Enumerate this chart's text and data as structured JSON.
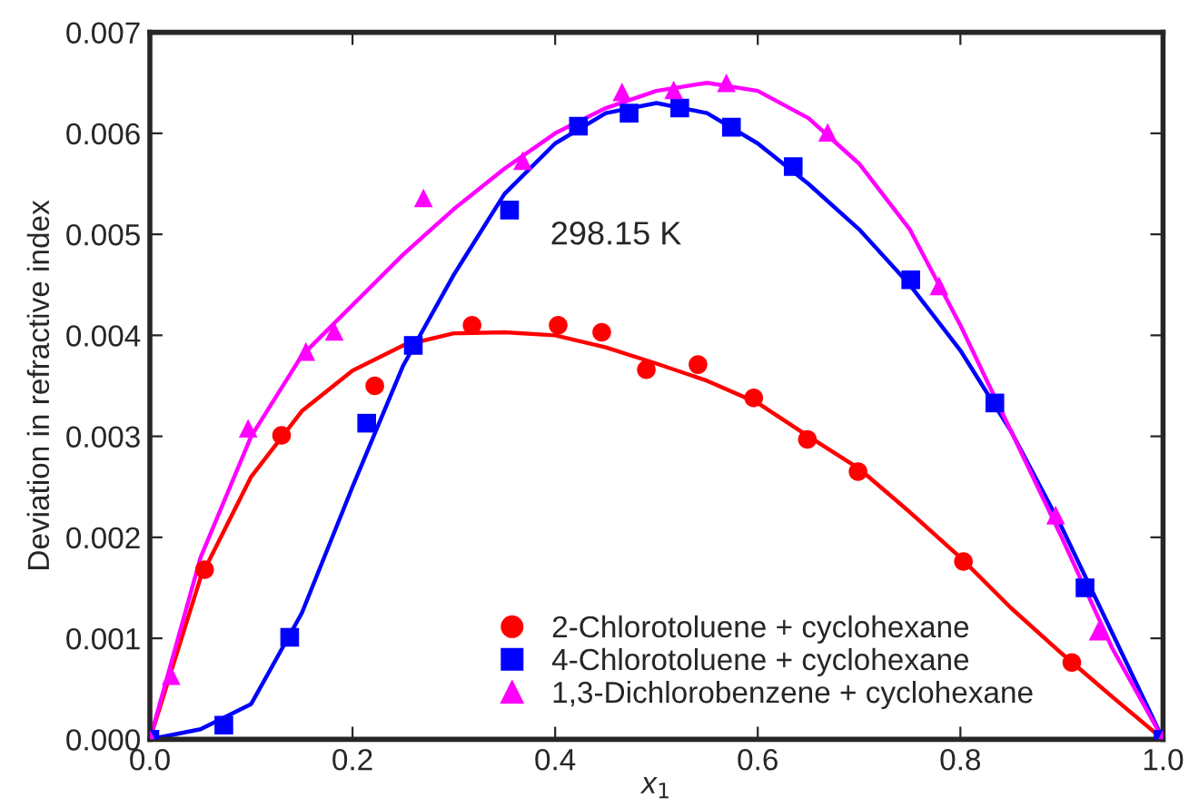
{
  "chart_data": {
    "type": "scatter",
    "xlabel": "x$_{1}$",
    "ylabel": "Deviation in refractive index",
    "annotations": [
      "298.15 K"
    ],
    "xlim": [
      0,
      1
    ],
    "ylim": [
      0,
      0.007
    ],
    "xticks": [
      {
        "value": 0,
        "label": "0.0"
      },
      {
        "value": 0.2,
        "label": "0.2"
      },
      {
        "value": 0.4,
        "label": "0.4"
      },
      {
        "value": 0.6,
        "label": "0.6"
      },
      {
        "value": 0.8,
        "label": "0.8"
      },
      {
        "value": 1,
        "label": "1.0"
      }
    ],
    "yticks": [
      {
        "value": 0,
        "label": "0.000"
      },
      {
        "value": 0.001,
        "label": "0.001"
      },
      {
        "value": 0.002,
        "label": "0.002"
      },
      {
        "value": 0.003,
        "label": "0.003"
      },
      {
        "value": 0.004,
        "label": "0.004"
      },
      {
        "value": 0.005,
        "label": "0.005"
      },
      {
        "value": 0.006,
        "label": "0.006"
      },
      {
        "value": 0.007,
        "label": "0.007"
      }
    ],
    "grid": false,
    "legend": "bottom",
    "series": [
      {
        "name": "2-Chlorotoluene + cyclohexane",
        "marker": "circle",
        "color": "#ff0000",
        "x": [
          0.054,
          0.13,
          0.222,
          0.318,
          0.403,
          0.446,
          0.49,
          0.541,
          0.596,
          0.649,
          0.699,
          0.803,
          0.91
        ],
        "values": [
          0.00168,
          0.00301,
          0.0035,
          0.0041,
          0.0041,
          0.00403,
          0.00366,
          0.00371,
          0.00338,
          0.00297,
          0.00265,
          0.00176,
          0.00076
        ]
      },
      {
        "name": "4-Chlorotoluene + cyclohexane",
        "marker": "square",
        "color": "#0000ff",
        "x": [
          0,
          0.073,
          0.138,
          0.214,
          0.26,
          0.355,
          0.423,
          0.473,
          0.523,
          0.574,
          0.635,
          0.751,
          0.834,
          0.923,
          1.0
        ],
        "values": [
          0,
          0.00014,
          0.00101,
          0.00313,
          0.0039,
          0.00524,
          0.00607,
          0.0062,
          0.00625,
          0.00606,
          0.00567,
          0.00455,
          0.00333,
          0.0015,
          0
        ]
      },
      {
        "name": "1,3-Dichlorobenzene + cyclohexane",
        "marker": "triangle",
        "color": "#ff00ff",
        "x": [
          0,
          0.021,
          0.097,
          0.154,
          0.182,
          0.27,
          0.368,
          0.466,
          0.517,
          0.569,
          0.669,
          0.779,
          0.894,
          0.936,
          1.0
        ],
        "values": [
          0,
          0.00063,
          0.00308,
          0.00384,
          0.00404,
          0.00536,
          0.00573,
          0.00641,
          0.00643,
          0.0065,
          0.00601,
          0.00449,
          0.00222,
          0.00107,
          0
        ]
      },
      {
        "type": "line",
        "marker": "none",
        "color": "#ff0000",
        "x": [
          0,
          0.05,
          0.1,
          0.15,
          0.2,
          0.25,
          0.3,
          0.35,
          0.4,
          0.45,
          0.5,
          0.55,
          0.6,
          0.65,
          0.7,
          0.75,
          0.8,
          0.85,
          0.9,
          0.95,
          1.0
        ],
        "values": [
          0,
          0.0016,
          0.0026,
          0.00325,
          0.00365,
          0.0039,
          0.00402,
          0.00403,
          0.004,
          0.00388,
          0.00372,
          0.00355,
          0.00333,
          0.003,
          0.00268,
          0.00225,
          0.0018,
          0.0013,
          0.00085,
          0.00042,
          0
        ]
      },
      {
        "type": "line",
        "marker": "none",
        "color": "#0000ff",
        "x": [
          0,
          0.05,
          0.1,
          0.15,
          0.2,
          0.25,
          0.3,
          0.35,
          0.4,
          0.45,
          0.5,
          0.55,
          0.6,
          0.65,
          0.7,
          0.75,
          0.8,
          0.85,
          0.9,
          0.95,
          1.0
        ],
        "values": [
          0,
          0.0001,
          0.00035,
          0.00125,
          0.0025,
          0.0037,
          0.0046,
          0.0054,
          0.0059,
          0.0062,
          0.0063,
          0.0062,
          0.0059,
          0.0055,
          0.00505,
          0.0045,
          0.00385,
          0.00305,
          0.0021,
          0.00105,
          0
        ]
      },
      {
        "type": "line",
        "marker": "none",
        "color": "#ff00ff",
        "x": [
          0,
          0.025,
          0.05,
          0.1,
          0.15,
          0.2,
          0.25,
          0.3,
          0.35,
          0.4,
          0.45,
          0.5,
          0.55,
          0.6,
          0.65,
          0.7,
          0.75,
          0.8,
          0.85,
          0.9,
          0.95,
          1.0
        ],
        "values": [
          0,
          0.0009,
          0.0018,
          0.003,
          0.0038,
          0.0043,
          0.0048,
          0.00525,
          0.00565,
          0.006,
          0.00625,
          0.00642,
          0.0065,
          0.00642,
          0.00615,
          0.0057,
          0.00505,
          0.0041,
          0.00305,
          0.002,
          0.0009,
          0
        ]
      }
    ]
  }
}
